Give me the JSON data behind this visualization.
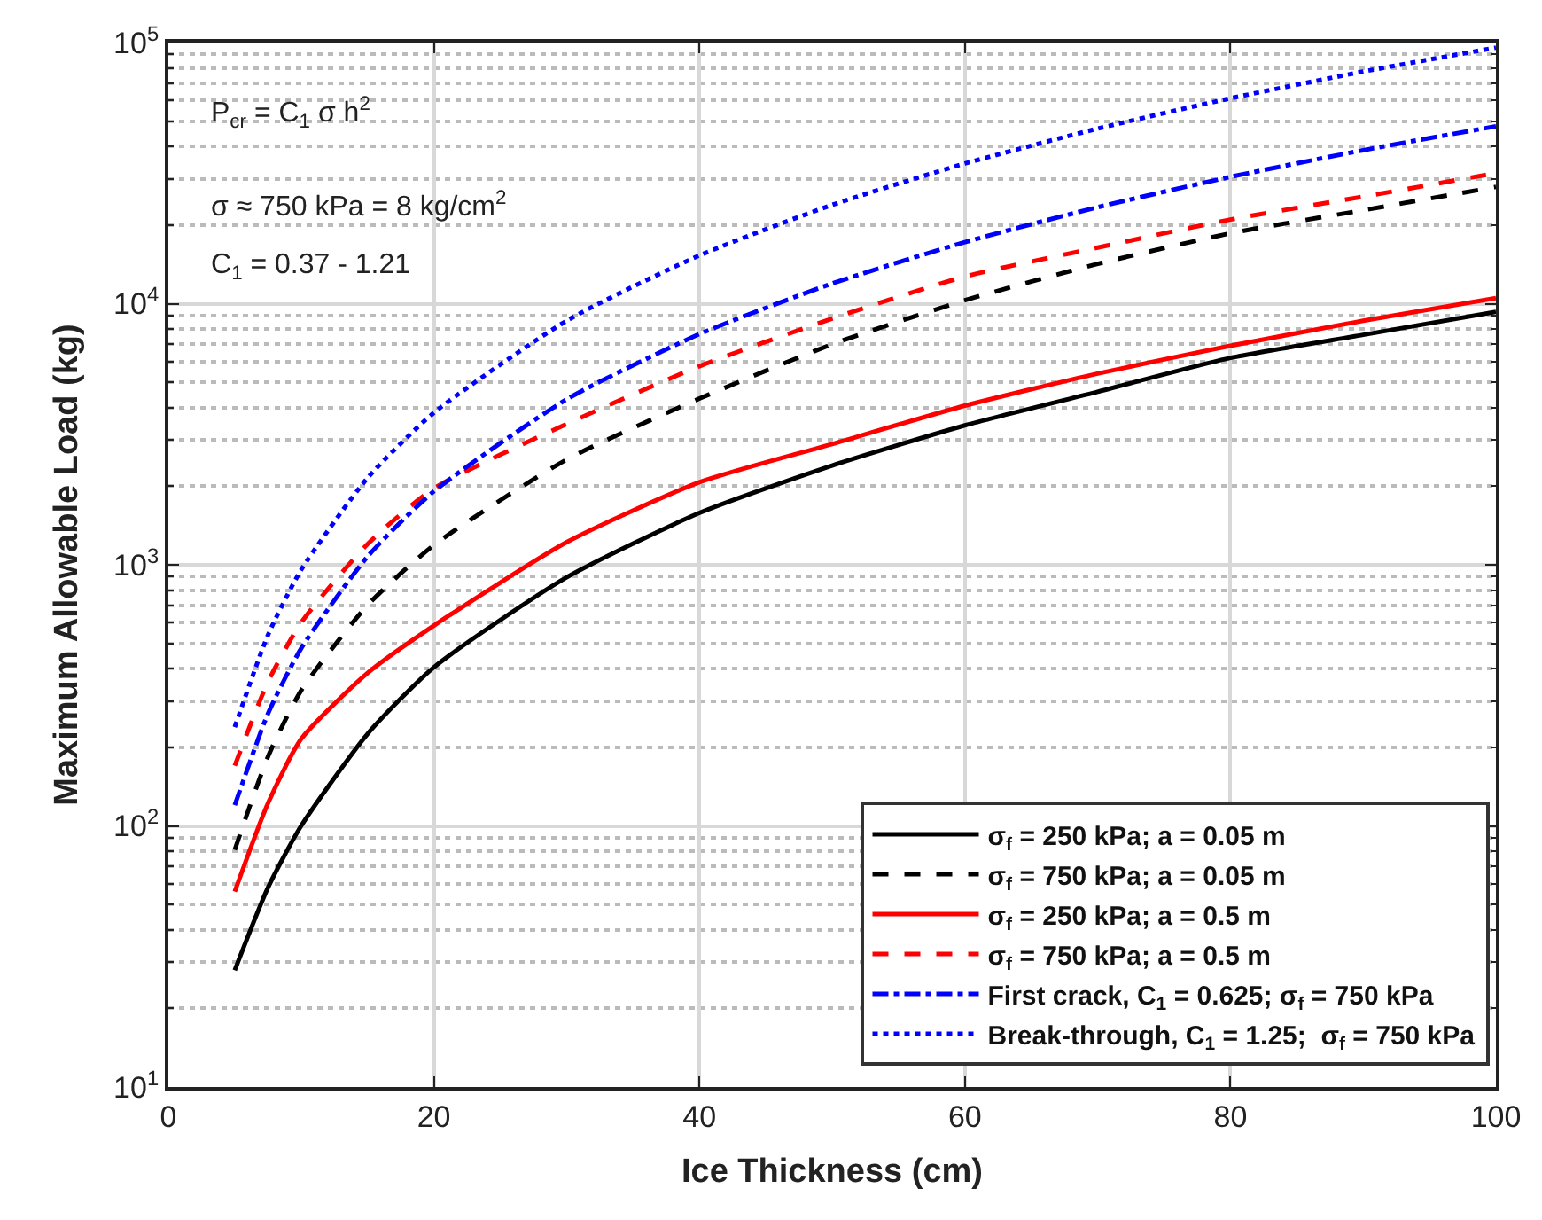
{
  "chart_data": {
    "type": "line",
    "xlabel": "Ice Thickness (cm)",
    "ylabel": "Maximum Allowable Load (kg)",
    "x": [
      5,
      7.5,
      10,
      15,
      20,
      30,
      40,
      50,
      60,
      70,
      80,
      90,
      100
    ],
    "series": [
      {
        "name": "σ$_{f}$ = 250 kPa; a = 0.05 m",
        "color": "#000000",
        "line_style": "solid",
        "values": [
          28,
          58,
          100,
          225,
          405,
          895,
          1580,
          2400,
          3420,
          4600,
          6200,
          7600,
          9300
        ]
      },
      {
        "name": "σ$_{f}$ = 750 kPa; a = 0.05 m",
        "color": "#000000",
        "line_style": "dashed",
        "values": [
          81,
          184,
          330,
          700,
          1190,
          2530,
          4330,
          6990,
          10300,
          14200,
          18600,
          22800,
          28000
        ]
      },
      {
        "name": "σ$_{f}$ = 250 kPa; a = 0.5 m",
        "color": "#ff0000",
        "line_style": "solid",
        "values": [
          56,
          122,
          215,
          385,
          585,
          1220,
          2070,
          2900,
          4070,
          5400,
          6900,
          8600,
          10500
        ]
      },
      {
        "name": "σ$_{f}$ = 750 kPa; a = 0.5 m",
        "color": "#ff0000",
        "line_style": "dashed",
        "values": [
          170,
          356,
          600,
          1200,
          1960,
          3460,
          5760,
          8770,
          12700,
          16400,
          21000,
          25700,
          31600
        ]
      },
      {
        "name": "First crack, C$_{1}$ = 0.625; σ$_{f}$ = 750 kPa",
        "color": "#0000ff",
        "line_style": "dashdot",
        "values": [
          120,
          269,
          478,
          1075,
          1911,
          4300,
          7645,
          11945,
          17200,
          23410,
          30580,
          38700,
          47780
        ]
      },
      {
        "name": "Break-through, C$_{1}$ = 1.25;  σ$_{f}$ = 750 kPa",
        "color": "#0000ff",
        "line_style": "dotted",
        "values": [
          239,
          538,
          956,
          2150,
          3823,
          8600,
          15291,
          23890,
          34404,
          46820,
          61162,
          77400,
          95566
        ]
      }
    ],
    "log": "y",
    "grid": true,
    "legend": "bottom right",
    "marker": "none",
    "xlim": [
      0,
      100
    ],
    "xticks": [
      0,
      20,
      40,
      60,
      80,
      100
    ],
    "ylim": [
      10,
      100000
    ],
    "yticks": [
      {
        "value": 10,
        "label": "10$^{1}$"
      },
      {
        "value": 100,
        "label": "10$^{2}$"
      },
      {
        "value": 1000,
        "label": "10$^{3}$"
      },
      {
        "value": 10000,
        "label": "10$^{4}$"
      },
      {
        "value": 100000,
        "label": "10$^{5}$"
      }
    ],
    "annotations": [
      "P$_{cr}$ = C$_{1}$ σ h$^{2}$",
      "σ ≈ 750 kPa = 8 kg/cm$^{2}$",
      "C$_{1}$ = 0.37 - 1.21"
    ]
  }
}
